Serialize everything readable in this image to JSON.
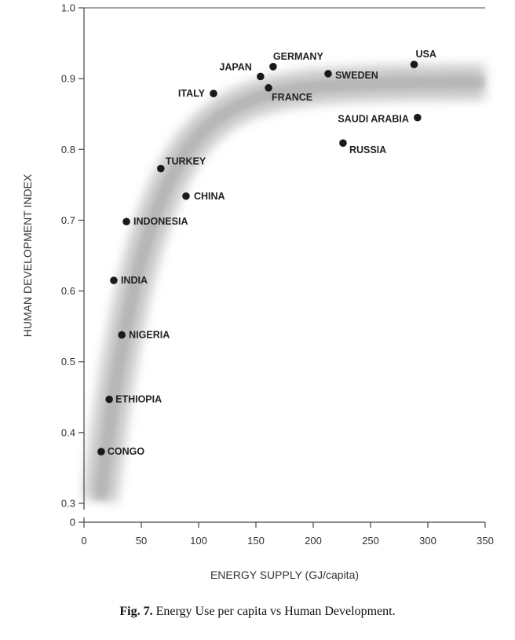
{
  "chart_data": {
    "type": "scatter",
    "xlabel": "ENERGY SUPPLY (GJ/capita)",
    "ylabel": "HUMAN DEVELOPMENT INDEX",
    "xlim": [
      0,
      350
    ],
    "ylim": [
      0.3,
      1.0
    ],
    "x_ticks": [
      0,
      50,
      100,
      150,
      200,
      250,
      300,
      350
    ],
    "y_ticks": [
      0.3,
      0.4,
      0.5,
      0.6,
      0.7,
      0.8,
      0.9,
      1.0
    ],
    "y_axis_break_label": "0",
    "y_axis_break": true,
    "grid": false,
    "trend_band": "shaded gray curve",
    "points": [
      {
        "label": "CONGO",
        "x": 15,
        "y": 0.373
      },
      {
        "label": "ETHIOPIA",
        "x": 22,
        "y": 0.447
      },
      {
        "label": "NIGERIA",
        "x": 33,
        "y": 0.538
      },
      {
        "label": "INDIA",
        "x": 26,
        "y": 0.615
      },
      {
        "label": "INDONESIA",
        "x": 37,
        "y": 0.698
      },
      {
        "label": "CHINA",
        "x": 89,
        "y": 0.734
      },
      {
        "label": "TURKEY",
        "x": 67,
        "y": 0.773
      },
      {
        "label": "ITALY",
        "x": 113,
        "y": 0.879
      },
      {
        "label": "JAPAN",
        "x": 154,
        "y": 0.903
      },
      {
        "label": "FRANCE",
        "x": 161,
        "y": 0.887
      },
      {
        "label": "GERMANY",
        "x": 165,
        "y": 0.917
      },
      {
        "label": "SWEDEN",
        "x": 213,
        "y": 0.907
      },
      {
        "label": "USA",
        "x": 288,
        "y": 0.92
      },
      {
        "label": "SAUDI ARABIA",
        "x": 291,
        "y": 0.845
      },
      {
        "label": "RUSSIA",
        "x": 226,
        "y": 0.809
      }
    ]
  },
  "caption": {
    "fig_label": "Fig. 7.",
    "text": " Energy Use per capita vs Human Development."
  },
  "colors": {
    "point": "#1a1a1a",
    "axis": "#444444",
    "band": "#9a9a9a"
  }
}
